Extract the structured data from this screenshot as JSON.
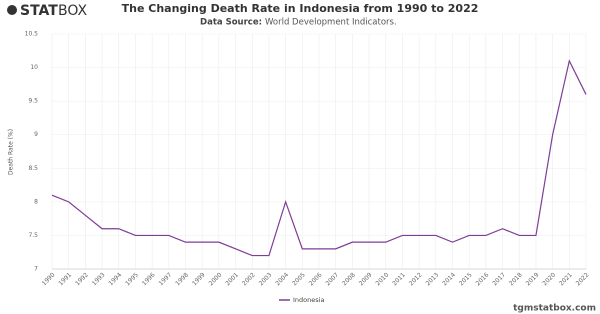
{
  "chart_data": {
    "type": "line",
    "logo": {
      "bold": "STAT",
      "light": "BOX"
    },
    "title": "The Changing Death Rate in Indonesia from 1990 to 2022",
    "source_label": "Data Source:",
    "source": "World Development Indicators.",
    "ylabel": "Death Rate (%)",
    "footer": "tgmstatbox.com",
    "categories": [
      "1990",
      "1991",
      "1992",
      "1993",
      "1994",
      "1995",
      "1996",
      "1997",
      "1998",
      "1999",
      "2000",
      "2001",
      "2002",
      "2003",
      "2004",
      "2005",
      "2006",
      "2007",
      "2008",
      "2009",
      "2010",
      "2011",
      "2012",
      "2013",
      "2014",
      "2015",
      "2016",
      "2017",
      "2018",
      "2019",
      "2020",
      "2021",
      "2022"
    ],
    "series": [
      {
        "name": "Indonesia",
        "color": "#7d3c98",
        "values": [
          8.1,
          8.0,
          7.8,
          7.6,
          7.6,
          7.5,
          7.5,
          7.5,
          7.4,
          7.4,
          7.4,
          7.3,
          7.2,
          7.2,
          8.0,
          7.3,
          7.3,
          7.3,
          7.4,
          7.4,
          7.4,
          7.5,
          7.5,
          7.5,
          7.4,
          7.5,
          7.5,
          7.6,
          7.5,
          7.5,
          9.0,
          10.1,
          9.6
        ]
      }
    ],
    "ylim": [
      7,
      10.5
    ],
    "yticks": [
      7,
      7.5,
      8,
      8.5,
      9,
      9.5,
      10,
      10.5
    ],
    "grid": true
  }
}
